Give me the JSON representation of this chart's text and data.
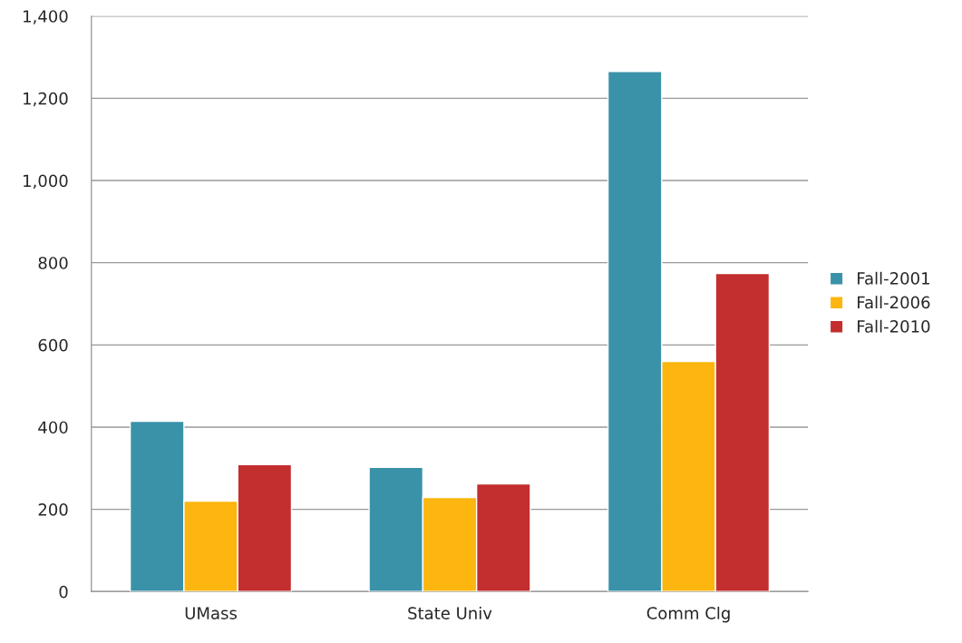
{
  "chart_data": {
    "type": "bar",
    "categories": [
      "UMass",
      "State Univ",
      "Comm Clg"
    ],
    "series": [
      {
        "name": "Fall-2001",
        "color": "#3a92a8",
        "values": [
          414,
          302,
          1265
        ]
      },
      {
        "name": "Fall-2006",
        "color": "#fdb60f",
        "values": [
          220,
          229,
          560
        ]
      },
      {
        "name": "Fall-2010",
        "color": "#c32e2f",
        "values": [
          309,
          262,
          774
        ]
      }
    ],
    "ylim": [
      0,
      1400
    ],
    "yticks": [
      0,
      200,
      400,
      600,
      800,
      {
        "value": 1000,
        "label": "1,000"
      },
      {
        "value": 1200,
        "label": "1,200"
      },
      {
        "value": 1400,
        "label": "1,400"
      }
    ],
    "grid": "y",
    "legend": "right"
  }
}
